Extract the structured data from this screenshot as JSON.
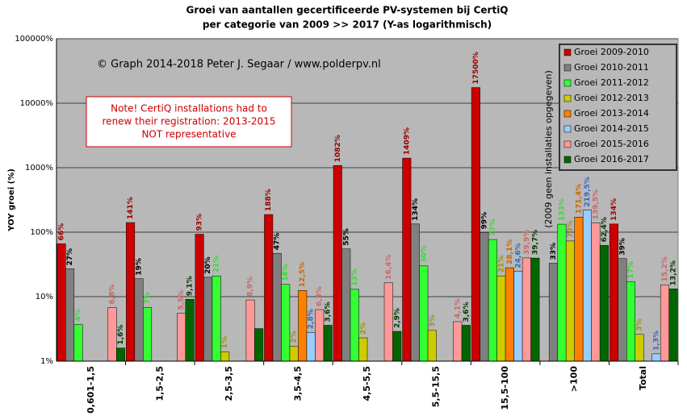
{
  "chart_data": {
    "type": "bar",
    "title": "Groei van aantallen gecertificeerde PV-systemen bij CertiQ",
    "subtitle": "per categorie van 2009 >> 2017 (Y-as logarithmisch)",
    "y_label": "YOY groei (%)",
    "annotations": [
      "© Graph 2014-2018 Peter J. Segaar / www.polderpv.nl",
      "Note! CertiQ installations had to",
      "renew their registration: 2013-2015",
      "NOT representative",
      "(2009 geen installaties opgegeven)"
    ],
    "log_scale": true,
    "grid": true,
    "legend": "top-right",
    "ylim": [
      1,
      100000
    ],
    "yticks": [
      {
        "value": 1,
        "label": "1%"
      },
      {
        "value": 10,
        "label": "10%"
      },
      {
        "value": 100,
        "label": "100%"
      },
      {
        "value": 1000,
        "label": "1000%"
      },
      {
        "value": 10000,
        "label": "10000%"
      },
      {
        "value": 100000,
        "label": "100000%"
      }
    ],
    "categories": [
      "0,601-1,5",
      "1,5-2,5",
      "2,5-3,5",
      "3,5-4,5",
      "4,5-5,5",
      "5,5-15,5",
      "15,5-100",
      ">100",
      "Total"
    ],
    "series": [
      {
        "name": "Groei 2009-2010",
        "color": "#cc0000",
        "label_color": "#990000",
        "values": [
          66,
          141,
          93,
          188,
          1082,
          1409,
          17500,
          null,
          134
        ],
        "value_labels": [
          "66%",
          "141%",
          "93%",
          "188%",
          "1082%",
          "1409%",
          "17500%",
          null,
          "134%"
        ]
      },
      {
        "name": "Groei 2010-2011",
        "color": "#808080",
        "label_color": "#000000",
        "values": [
          27,
          19,
          20,
          47,
          55,
          134,
          99,
          33,
          39
        ],
        "value_labels": [
          "27%",
          "19%",
          "20%",
          "47%",
          "55%",
          "134%",
          "99%",
          "33%",
          "39%"
        ]
      },
      {
        "name": "Groei 2011-2012",
        "color": "#33ff33",
        "label_color": "#33dd33",
        "values": [
          3.7,
          6.8,
          21,
          15.5,
          13,
          30,
          77,
          133,
          17
        ],
        "value_labels": [
          "4%",
          "7%",
          "21%",
          "16%",
          "13%",
          "30%",
          "77%",
          "133%",
          "17%"
        ]
      },
      {
        "name": "Groei 2012-2013",
        "color": "#cccc00",
        "label_color": "#999900",
        "values": [
          null,
          null,
          1.4,
          1.7,
          2.3,
          3,
          21,
          73,
          2.6
        ],
        "value_labels": [
          null,
          null,
          "1%",
          "2%",
          "2%",
          "3%",
          "21%",
          "73%",
          "3%"
        ]
      },
      {
        "name": "Groei 2013-2014",
        "color": "#ff8000",
        "label_color": "#cc6600",
        "values": [
          null,
          null,
          null,
          12.5,
          null,
          null,
          28.1,
          171.4,
          null
        ],
        "value_labels": [
          null,
          null,
          null,
          "12,5%",
          null,
          null,
          "28,1%",
          "171,4%",
          null
        ]
      },
      {
        "name": "Groei 2014-2015",
        "color": "#99ccff",
        "label_color": "#3366cc",
        "values": [
          null,
          null,
          null,
          2.8,
          null,
          null,
          24.6,
          219.5,
          1.3
        ],
        "value_labels": [
          null,
          null,
          null,
          "2,8%",
          null,
          null,
          "24,6%",
          "219,5%",
          "1,3%"
        ]
      },
      {
        "name": "Groei 2015-2016",
        "color": "#ff9999",
        "label_color": "#cc6666",
        "values": [
          6.8,
          5.5,
          8.9,
          6.3,
          16.4,
          4.1,
          39.9,
          139.5,
          15.2
        ],
        "value_labels": [
          "6,8%",
          "5,5%",
          "8,9%",
          "6,3%",
          "16,4%",
          "4,1%",
          "39,9%",
          "139,5%",
          "15,2%"
        ]
      },
      {
        "name": "Groei 2016-2017",
        "color": "#006600",
        "label_color": "#003300",
        "values": [
          1.6,
          9.1,
          3.2,
          3.6,
          2.9,
          3.6,
          39.7,
          62.4,
          13.2
        ],
        "value_labels": [
          "1,6%",
          "9,1%",
          null,
          "3,6%",
          "2,9%",
          "3,6%",
          "39,7%",
          "62,4%",
          "13,2%"
        ]
      }
    ]
  }
}
